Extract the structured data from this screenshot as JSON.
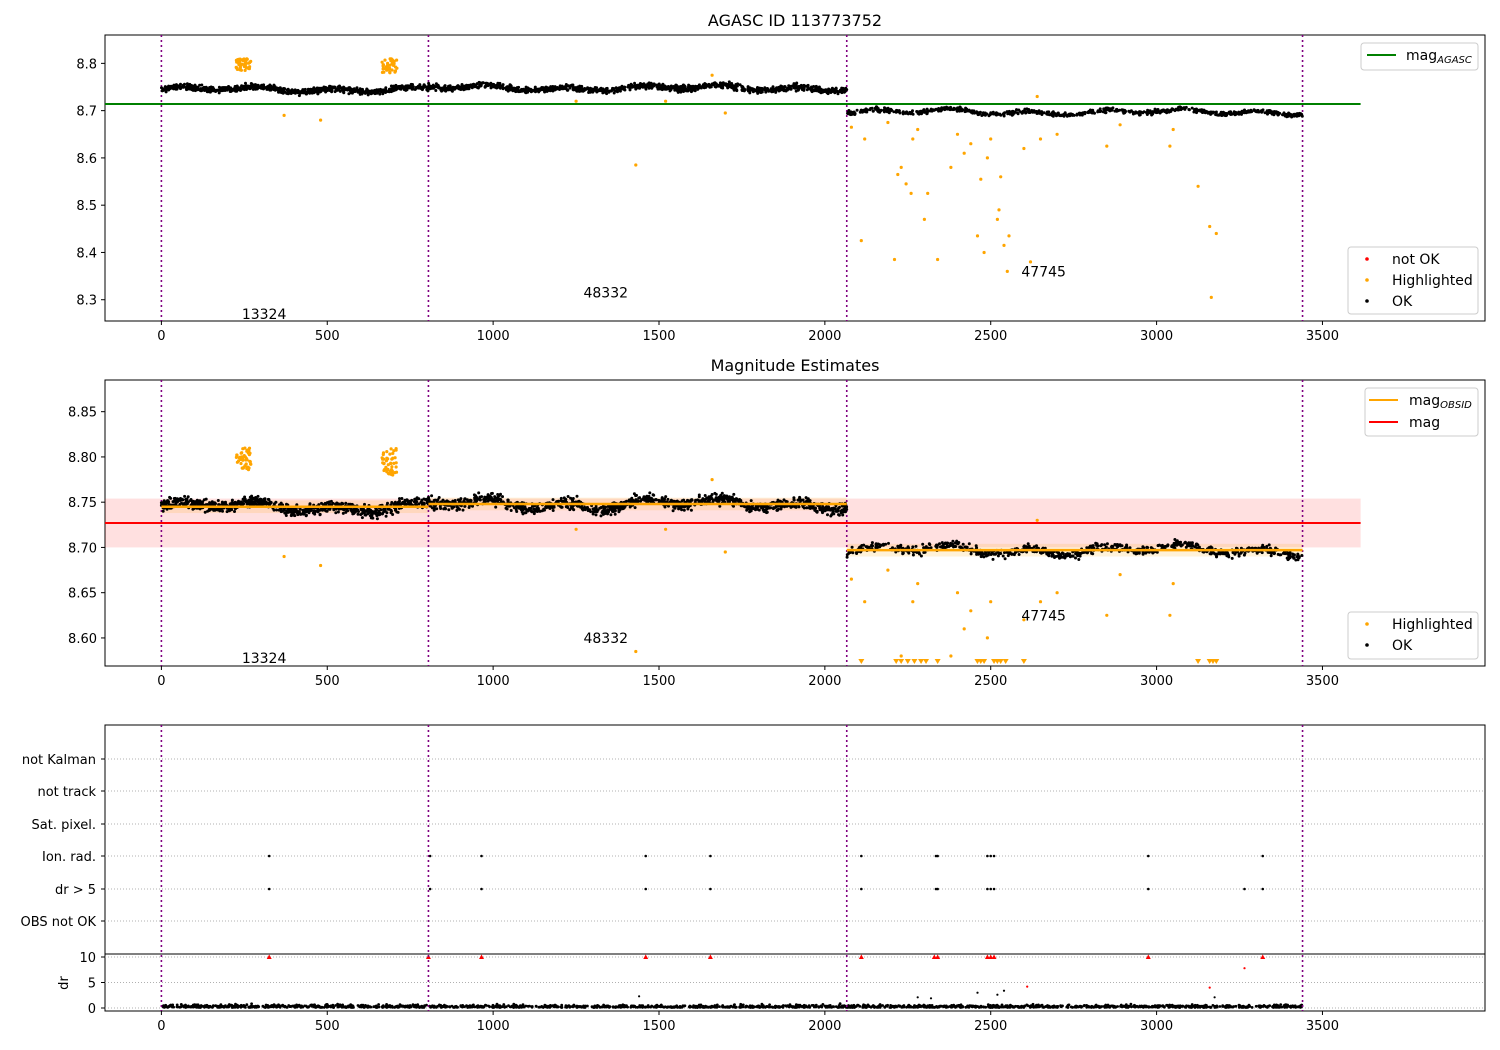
{
  "chart_data": [
    {
      "type": "scatter",
      "title": "AGASC ID 113773752",
      "xlabel": "",
      "ylabel": "",
      "xlim": [
        -170,
        3990
      ],
      "ylim": [
        8.255,
        8.86
      ],
      "xticks": [
        "0",
        "500",
        "1000",
        "1500",
        "2000",
        "2500",
        "3000",
        "3500"
      ],
      "yticks": [
        "8.3",
        "8.4",
        "8.5",
        "8.6",
        "8.7",
        "8.8"
      ],
      "legend_top": {
        "position": "upper right",
        "entries": [
          {
            "label": "mag",
            "sub": "AGASC",
            "color": "#008000"
          }
        ]
      },
      "legend_bottom": {
        "position": "lower right",
        "entries": [
          {
            "label": "not OK",
            "color": "#ff0000"
          },
          {
            "label": "Highlighted",
            "color": "#ffa500"
          },
          {
            "label": "OK",
            "color": "#000000"
          }
        ]
      },
      "mag_agasc": 8.714,
      "mag_agasc_x_range": [
        -170,
        3615
      ],
      "observation_boundaries": [
        0,
        805,
        2066,
        3440
      ],
      "observation_labels": [
        {
          "text": "13324",
          "x": 400,
          "y": 8.27
        },
        {
          "text": "48332",
          "x": 1430,
          "y": 8.315
        },
        {
          "text": "47745",
          "x": 2750,
          "y": 8.36
        }
      ],
      "segments": [
        {
          "x": [
            0,
            805
          ],
          "mean": 8.745,
          "std": 0.008
        },
        {
          "x": [
            805,
            2066
          ],
          "mean": 8.748,
          "std": 0.008
        },
        {
          "x": [
            2066,
            3440
          ],
          "mean": 8.697,
          "std": 0.006
        }
      ],
      "highlighted_clusters": [
        {
          "x": [
            225,
            270
          ],
          "y": [
            8.785,
            8.81
          ]
        },
        {
          "x": [
            665,
            710
          ],
          "y": [
            8.78,
            8.81
          ]
        }
      ],
      "highlighted_points": [
        [
          370,
          8.69
        ],
        [
          480,
          8.68
        ],
        [
          1430,
          8.585
        ],
        [
          1250,
          8.72
        ],
        [
          1520,
          8.72
        ],
        [
          1660,
          8.775
        ],
        [
          1700,
          8.695
        ],
        [
          2080,
          8.665
        ],
        [
          2110,
          8.425
        ],
        [
          2210,
          8.385
        ],
        [
          2220,
          8.565
        ],
        [
          2230,
          8.58
        ],
        [
          2245,
          8.545
        ],
        [
          2260,
          8.525
        ],
        [
          2265,
          8.64
        ],
        [
          2300,
          8.47
        ],
        [
          2310,
          8.525
        ],
        [
          2340,
          8.385
        ],
        [
          2380,
          8.58
        ],
        [
          2400,
          8.65
        ],
        [
          2420,
          8.61
        ],
        [
          2440,
          8.63
        ],
        [
          2460,
          8.435
        ],
        [
          2470,
          8.555
        ],
        [
          2480,
          8.4
        ],
        [
          2490,
          8.6
        ],
        [
          2500,
          8.64
        ],
        [
          2520,
          8.47
        ],
        [
          2525,
          8.49
        ],
        [
          2530,
          8.56
        ],
        [
          2540,
          8.415
        ],
        [
          2550,
          8.36
        ],
        [
          2555,
          8.435
        ],
        [
          2600,
          8.62
        ],
        [
          2620,
          8.38
        ],
        [
          2640,
          8.73
        ],
        [
          2650,
          8.64
        ],
        [
          2700,
          8.65
        ],
        [
          2850,
          8.625
        ],
        [
          2890,
          8.67
        ],
        [
          3040,
          8.625
        ],
        [
          3050,
          8.66
        ],
        [
          3125,
          8.54
        ],
        [
          3160,
          8.455
        ],
        [
          3165,
          8.305
        ],
        [
          3180,
          8.44
        ],
        [
          2120,
          8.64
        ],
        [
          2190,
          8.675
        ],
        [
          2280,
          8.66
        ]
      ]
    },
    {
      "type": "scatter",
      "title": "Magnitude Estimates",
      "xlabel": "",
      "ylabel": "",
      "xlim": [
        -170,
        3990
      ],
      "ylim": [
        8.569,
        8.885
      ],
      "xticks": [
        "0",
        "500",
        "1000",
        "1500",
        "2000",
        "2500",
        "3000",
        "3500"
      ],
      "yticks": [
        "8.60",
        "8.65",
        "8.70",
        "8.75",
        "8.80",
        "8.85"
      ],
      "legend_top": {
        "position": "upper right",
        "entries": [
          {
            "label": "mag",
            "sub": "OBSID",
            "color": "#ffa500"
          },
          {
            "label": "mag",
            "sub": "",
            "color": "#ff0000"
          }
        ]
      },
      "legend_bottom": {
        "position": "lower right",
        "entries": [
          {
            "label": "Highlighted",
            "color": "#ffa500"
          },
          {
            "label": "OK",
            "color": "#000000"
          }
        ]
      },
      "mag": 8.727,
      "mag_band": [
        8.7,
        8.754
      ],
      "mag_x_range": [
        -170,
        3615
      ],
      "observation_labels": [
        {
          "text": "13324",
          "x": 400,
          "y": 8.578
        },
        {
          "text": "48332",
          "x": 1430,
          "y": 8.6
        },
        {
          "text": "47745",
          "x": 2750,
          "y": 8.625
        }
      ],
      "mag_obsid_segments": [
        {
          "x": [
            0,
            805
          ],
          "mean": 8.745
        },
        {
          "x": [
            805,
            2066
          ],
          "mean": 8.748
        },
        {
          "x": [
            2066,
            3440
          ],
          "mean": 8.697
        }
      ],
      "off_scale_markers_x": [
        2110,
        2215,
        2230,
        2250,
        2270,
        2290,
        2305,
        2340,
        2460,
        2470,
        2480,
        2510,
        2520,
        2530,
        2545,
        2600,
        3125,
        3160,
        3170,
        3180
      ]
    },
    {
      "type": "scatter",
      "title": "",
      "xlabel": "",
      "ylabel": "dr",
      "xlim": [
        -170,
        3990
      ],
      "xticks": [
        "0",
        "500",
        "1000",
        "1500",
        "2000",
        "2500",
        "3000",
        "3500"
      ],
      "flag_rows": [
        "not Kalman",
        "not track",
        "Sat. pixel.",
        "Ion. rad.",
        "dr > 5",
        "OBS not OK"
      ],
      "flag_events": {
        "Ion. rad.": [
          325,
          810,
          965,
          1460,
          1655,
          2110,
          2335,
          2340,
          2490,
          2500,
          2510,
          2975,
          3320
        ],
        "dr > 5": [
          325,
          810,
          965,
          1460,
          1655,
          2110,
          2335,
          2340,
          2490,
          2500,
          2510,
          2975,
          3265,
          3320
        ]
      },
      "dr_yticks": [
        "0",
        "5",
        "10"
      ],
      "dr_ylim": [
        -0.5,
        10.5
      ],
      "dr_clipped_x": [
        325,
        805,
        965,
        1460,
        1655,
        2110,
        2330,
        2340,
        2490,
        2500,
        2510,
        2975,
        3320
      ],
      "dr_scattered_points": [
        [
          1440,
          2.3
        ],
        [
          2460,
          3
        ],
        [
          2520,
          2.6
        ],
        [
          2540,
          3.4
        ],
        [
          2610,
          4.2
        ],
        [
          3160,
          4
        ],
        [
          3175,
          2.1
        ],
        [
          3265,
          7.8
        ],
        [
          2320,
          1.9
        ],
        [
          2280,
          2.1
        ]
      ]
    }
  ]
}
